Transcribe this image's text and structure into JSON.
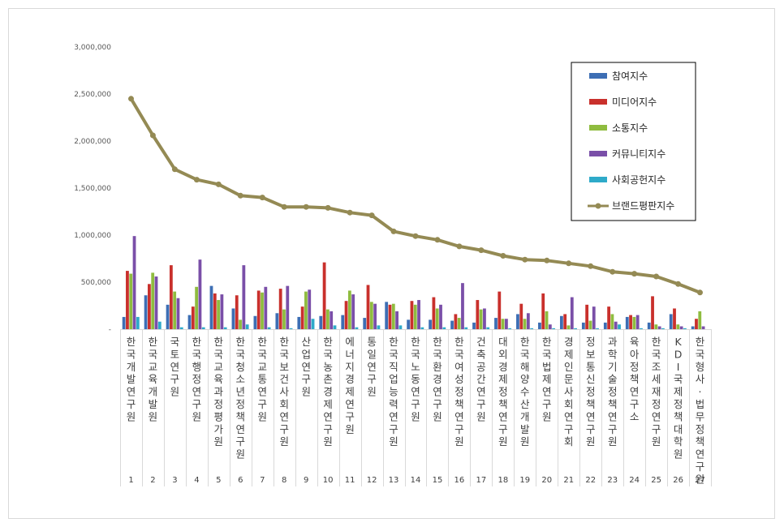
{
  "chart_data": {
    "type": "bar",
    "title": "",
    "xlabel": "",
    "ylabel": "",
    "ylim": [
      0,
      3000000
    ],
    "yticks": [
      "-",
      "500,000",
      "1,000,000",
      "1,500,000",
      "2,000,000",
      "2,500,000",
      "3,000,000"
    ],
    "grid": false,
    "legend_position": "top-right",
    "categories": [
      "한국개발연구원",
      "한국교육개발원",
      "국토연구원",
      "한국행정연구원",
      "한국교육과정평가원",
      "한국청소년정책연구원",
      "한국교통연구원",
      "한국보건사회연구원",
      "산업연구원",
      "한국농촌경제연구원",
      "에너지경제연구원",
      "통일연구원",
      "한국직업능력연구원",
      "한국노동연구원",
      "한국환경연구원",
      "한국여성정책연구원",
      "건축공간연구원",
      "대외경제정책연구원",
      "한국해양수산개발원",
      "한국법제연구원",
      "경제인문사회연구회",
      "정보통신정책연구원",
      "과학기술정책연구원",
      "육아정책연구소",
      "한국조세재정연구원",
      "KDI국제정책대학원",
      "한국형사·법무정책연구원"
    ],
    "ranks": [
      "1",
      "2",
      "3",
      "4",
      "5",
      "6",
      "7",
      "8",
      "9",
      "10",
      "11",
      "12",
      "13",
      "14",
      "15",
      "16",
      "17",
      "18",
      "19",
      "20",
      "21",
      "22",
      "23",
      "24",
      "25",
      "26",
      "27"
    ],
    "series": [
      {
        "name": "참여지수",
        "color": "#3d6eb4",
        "values": [
          130000,
          360000,
          260000,
          150000,
          460000,
          220000,
          140000,
          170000,
          130000,
          140000,
          150000,
          120000,
          290000,
          100000,
          100000,
          90000,
          70000,
          120000,
          160000,
          70000,
          140000,
          70000,
          70000,
          130000,
          70000,
          160000,
          30000
        ]
      },
      {
        "name": "미디어지수",
        "color": "#c9302c",
        "values": [
          620000,
          480000,
          680000,
          240000,
          380000,
          360000,
          410000,
          430000,
          240000,
          710000,
          300000,
          470000,
          260000,
          300000,
          340000,
          160000,
          310000,
          400000,
          270000,
          380000,
          160000,
          260000,
          240000,
          150000,
          350000,
          220000,
          110000
        ]
      },
      {
        "name": "소통지수",
        "color": "#8fbc3f",
        "values": [
          590000,
          600000,
          400000,
          450000,
          310000,
          100000,
          390000,
          210000,
          400000,
          210000,
          410000,
          290000,
          270000,
          260000,
          220000,
          120000,
          210000,
          110000,
          110000,
          190000,
          40000,
          90000,
          160000,
          130000,
          50000,
          50000,
          190000
        ]
      },
      {
        "name": "커뮤니티지수",
        "color": "#7a4fa8",
        "values": [
          990000,
          560000,
          330000,
          740000,
          370000,
          680000,
          450000,
          460000,
          420000,
          190000,
          370000,
          270000,
          190000,
          310000,
          260000,
          490000,
          220000,
          110000,
          170000,
          50000,
          340000,
          240000,
          80000,
          150000,
          30000,
          30000,
          30000
        ]
      },
      {
        "name": "사회공헌지수",
        "color": "#2eaac9",
        "values": [
          130000,
          80000,
          20000,
          20000,
          20000,
          50000,
          20000,
          10000,
          110000,
          40000,
          20000,
          40000,
          40000,
          20000,
          20000,
          20000,
          20000,
          10000,
          10000,
          10000,
          10000,
          10000,
          50000,
          10000,
          10000,
          10000,
          0
        ]
      }
    ],
    "line": {
      "name": "브랜드평판지수",
      "color": "#948a54",
      "values": [
        2450000,
        2060000,
        1700000,
        1590000,
        1540000,
        1420000,
        1400000,
        1300000,
        1300000,
        1290000,
        1240000,
        1210000,
        1040000,
        990000,
        950000,
        880000,
        840000,
        780000,
        740000,
        730000,
        700000,
        670000,
        610000,
        590000,
        560000,
        480000,
        390000
      ]
    }
  }
}
